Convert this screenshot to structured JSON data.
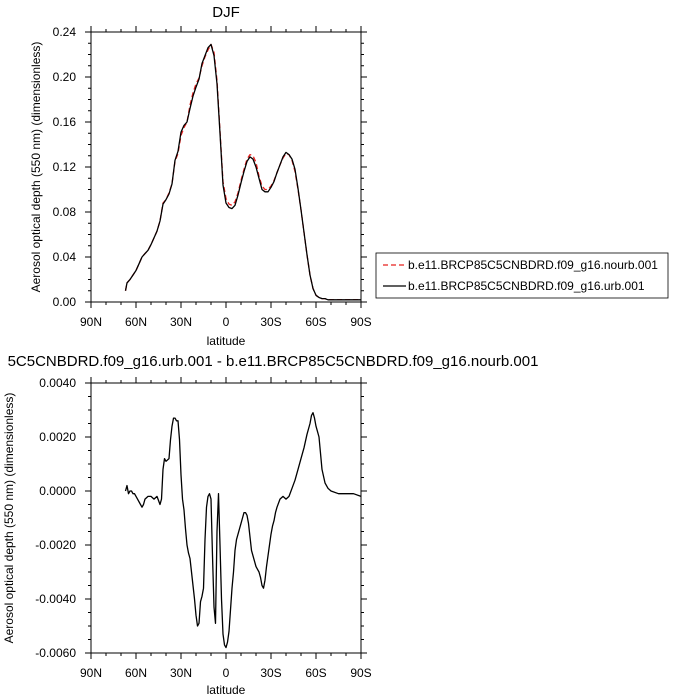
{
  "chart_data": [
    {
      "type": "line",
      "title": "DJF",
      "xlabel": "latitude",
      "ylabel": "Aerosol optical depth (550 nm) (dimensionless)",
      "xlim": [
        90,
        -90
      ],
      "ylim": [
        0,
        0.24
      ],
      "x_ticks": [
        {
          "value": 90,
          "label": "90N"
        },
        {
          "value": 60,
          "label": "60N"
        },
        {
          "value": 30,
          "label": "30N"
        },
        {
          "value": 0,
          "label": "0"
        },
        {
          "value": -30,
          "label": "30S"
        },
        {
          "value": -60,
          "label": "60S"
        },
        {
          "value": -90,
          "label": "90S"
        }
      ],
      "y_ticks": [
        {
          "value": 0,
          "label": "0.00"
        },
        {
          "value": 0.04,
          "label": "0.04"
        },
        {
          "value": 0.08,
          "label": "0.08"
        },
        {
          "value": 0.12,
          "label": "0.12"
        },
        {
          "value": 0.16,
          "label": "0.16"
        },
        {
          "value": 0.2,
          "label": "0.20"
        },
        {
          "value": 0.24,
          "label": "0.24"
        }
      ],
      "grid": false,
      "legend_position": "right, outside plot",
      "series": [
        {
          "name": "b.e11.BRCP85C5CNBDRD.f09_g16.nourb.001",
          "color": "#e8201e",
          "style": "dashed",
          "x": [
            67,
            66,
            64,
            62,
            60,
            58,
            56,
            54,
            52,
            50,
            48,
            46,
            44,
            42,
            40,
            38,
            36,
            34,
            32,
            30,
            28,
            26,
            24,
            22,
            20,
            18,
            16,
            14,
            12,
            10,
            8,
            6,
            4,
            2,
            0,
            -2,
            -4,
            -6,
            -8,
            -10,
            -12,
            -14,
            -16,
            -18,
            -20,
            -22,
            -24,
            -26,
            -28,
            -30,
            -32,
            -34,
            -36,
            -38,
            -40,
            -42,
            -44,
            -46,
            -48,
            -50,
            -52,
            -54,
            -56,
            -58,
            -60,
            -62,
            -64,
            -66,
            -68,
            -70,
            -72,
            -75,
            -78,
            -81,
            -84,
            -87,
            -90
          ],
          "y": [
            0.01,
            0.017,
            0.02,
            0.024,
            0.028,
            0.034,
            0.04,
            0.043,
            0.046,
            0.051,
            0.057,
            0.063,
            0.072,
            0.088,
            0.091,
            0.097,
            0.105,
            0.125,
            0.132,
            0.148,
            0.155,
            0.16,
            0.175,
            0.186,
            0.194,
            0.199,
            0.21,
            0.218,
            0.224,
            0.229,
            0.222,
            0.197,
            0.152,
            0.107,
            0.092,
            0.087,
            0.086,
            0.089,
            0.097,
            0.108,
            0.118,
            0.127,
            0.131,
            0.13,
            0.124,
            0.112,
            0.103,
            0.1,
            0.1,
            0.103,
            0.108,
            0.115,
            0.122,
            0.128,
            0.132,
            0.131,
            0.126,
            0.116,
            0.1,
            0.082,
            0.062,
            0.042,
            0.024,
            0.012,
            0.006,
            0.004,
            0.003,
            0.003,
            0.002,
            0.002,
            0.002,
            0.002,
            0.002,
            0.002,
            0.002,
            0.002,
            0.002
          ]
        },
        {
          "name": "b.e11.BRCP85C5CNBDRD.f09_g16.urb.001",
          "color": "#000000",
          "style": "solid",
          "x": [
            67,
            66,
            64,
            62,
            60,
            58,
            56,
            54,
            52,
            50,
            48,
            46,
            44,
            42,
            40,
            38,
            36,
            34,
            32,
            30,
            28,
            26,
            24,
            22,
            20,
            18,
            16,
            14,
            12,
            10,
            8,
            6,
            4,
            2,
            0,
            -2,
            -4,
            -6,
            -8,
            -10,
            -12,
            -14,
            -16,
            -18,
            -20,
            -22,
            -24,
            -26,
            -28,
            -30,
            -32,
            -34,
            -36,
            -38,
            -40,
            -42,
            -44,
            -46,
            -48,
            -50,
            -52,
            -54,
            -56,
            -58,
            -60,
            -62,
            -64,
            -66,
            -68,
            -70,
            -72,
            -75,
            -78,
            -81,
            -84,
            -87,
            -90
          ],
          "y": [
            0.01,
            0.017,
            0.02,
            0.024,
            0.028,
            0.034,
            0.04,
            0.043,
            0.046,
            0.051,
            0.057,
            0.063,
            0.072,
            0.087,
            0.091,
            0.096,
            0.105,
            0.126,
            0.134,
            0.151,
            0.157,
            0.16,
            0.172,
            0.183,
            0.191,
            0.198,
            0.212,
            0.219,
            0.226,
            0.229,
            0.219,
            0.194,
            0.15,
            0.104,
            0.088,
            0.084,
            0.083,
            0.086,
            0.095,
            0.106,
            0.116,
            0.125,
            0.129,
            0.127,
            0.12,
            0.11,
            0.1,
            0.098,
            0.098,
            0.102,
            0.107,
            0.115,
            0.122,
            0.129,
            0.133,
            0.131,
            0.127,
            0.118,
            0.101,
            0.082,
            0.062,
            0.042,
            0.024,
            0.012,
            0.006,
            0.004,
            0.003,
            0.003,
            0.002,
            0.002,
            0.002,
            0.002,
            0.002,
            0.002,
            0.002,
            0.002,
            0.002
          ]
        }
      ]
    },
    {
      "type": "line",
      "title": "5C5CNBDRD.f09_g16.urb.001 - b.e11.BRCP85C5CNBDRD.f09_g16.nourb.001",
      "xlabel": "latitude",
      "ylabel": "Aerosol optical depth (550 nm) (dimensionless)",
      "xlim": [
        90,
        -90
      ],
      "ylim": [
        -0.006,
        0.004
      ],
      "x_ticks": [
        {
          "value": 90,
          "label": "90N"
        },
        {
          "value": 60,
          "label": "60N"
        },
        {
          "value": 30,
          "label": "30N"
        },
        {
          "value": 0,
          "label": "0"
        },
        {
          "value": -30,
          "label": "30S"
        },
        {
          "value": -60,
          "label": "60S"
        },
        {
          "value": -90,
          "label": "90S"
        }
      ],
      "y_ticks": [
        {
          "value": 0.004,
          "label": "0.0040"
        },
        {
          "value": 0.002,
          "label": "0.0020"
        },
        {
          "value": 0,
          "label": "0.0000"
        },
        {
          "value": -0.002,
          "label": "-0.0020"
        },
        {
          "value": -0.004,
          "label": "-0.0040"
        },
        {
          "value": -0.006,
          "label": "-0.0060"
        }
      ],
      "grid": false,
      "series": [
        {
          "color": "#000000",
          "style": "solid",
          "x": [
            67,
            66,
            65,
            64,
            63,
            62,
            61,
            59,
            57,
            56,
            55,
            54,
            52,
            50,
            48,
            46,
            44,
            43,
            42,
            41,
            40,
            38,
            37,
            36,
            35,
            34,
            33,
            32,
            31,
            30,
            29,
            28,
            27,
            26,
            25,
            24,
            23,
            22,
            21,
            20,
            19,
            18,
            17,
            16,
            15,
            14,
            13,
            12,
            11,
            10,
            9,
            8,
            7,
            6,
            5,
            4,
            3,
            2,
            1,
            0,
            -1,
            -2,
            -3,
            -4,
            -5,
            -6,
            -7,
            -8,
            -9,
            -10,
            -11,
            -12,
            -13,
            -14,
            -15,
            -16,
            -17,
            -18,
            -19,
            -20,
            -21,
            -22,
            -23,
            -24,
            -25,
            -26,
            -27,
            -28,
            -29,
            -30,
            -31,
            -32,
            -33,
            -34,
            -36,
            -38,
            -40,
            -42,
            -44,
            -46,
            -48,
            -50,
            -52,
            -54,
            -56,
            -57,
            -58,
            -59,
            -60,
            -61,
            -62,
            -63,
            -64,
            -66,
            -68,
            -70,
            -75,
            -80,
            -85,
            -90
          ],
          "y": [
            0.0,
            0.0002,
            -0.0001,
            0.0,
            0.0,
            -0.0001,
            -0.0001,
            -0.0003,
            -0.0005,
            -0.0006,
            -0.0005,
            -0.0003,
            -0.0002,
            -0.0002,
            -0.0003,
            -0.0002,
            -0.0005,
            -0.0003,
            0.0008,
            0.0012,
            0.0011,
            0.0012,
            0.0019,
            0.0024,
            0.0027,
            0.0027,
            0.0026,
            0.0026,
            0.0019,
            0.0006,
            -0.0003,
            -0.0007,
            -0.0014,
            -0.002,
            -0.0023,
            -0.0025,
            -0.003,
            -0.0035,
            -0.004,
            -0.0046,
            -0.005,
            -0.0049,
            -0.0041,
            -0.0039,
            -0.0036,
            -0.0018,
            -0.0006,
            -0.0002,
            -0.0001,
            -0.0003,
            -0.0024,
            -0.0043,
            -0.0049,
            -0.0015,
            -0.0001,
            -0.002,
            -0.004,
            -0.0053,
            -0.0057,
            -0.0058,
            -0.0056,
            -0.0052,
            -0.0044,
            -0.0036,
            -0.003,
            -0.0022,
            -0.0018,
            -0.0016,
            -0.0014,
            -0.0012,
            -0.001,
            -0.0008,
            -0.0008,
            -0.0009,
            -0.0012,
            -0.0017,
            -0.0022,
            -0.0024,
            -0.0026,
            -0.0028,
            -0.0029,
            -0.003,
            -0.0032,
            -0.0035,
            -0.0036,
            -0.0033,
            -0.0028,
            -0.0024,
            -0.002,
            -0.0016,
            -0.0013,
            -0.0011,
            -0.0008,
            -0.0006,
            -0.0003,
            -0.0002,
            -0.0003,
            -0.0002,
            0.0001,
            0.0004,
            0.0008,
            0.0012,
            0.0016,
            0.0021,
            0.0025,
            0.0028,
            0.0029,
            0.0027,
            0.0024,
            0.0022,
            0.002,
            0.0014,
            0.0008,
            0.0003,
            0.0001,
            0.0,
            -0.0001,
            -0.0001,
            -0.0001,
            -0.0002
          ]
        }
      ]
    }
  ]
}
